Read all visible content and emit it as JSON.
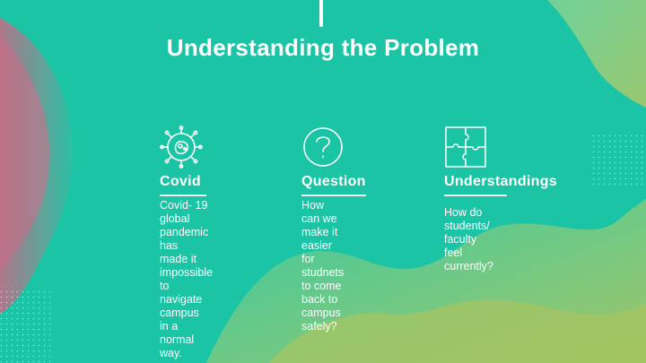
{
  "slide": {
    "title": "Understanding the Problem"
  },
  "columns": [
    {
      "icon": "virus-icon",
      "heading": "Covid",
      "body": "Covid- 19 global\npandemic has\nmade it\nimpossible to\nnavigate campus\nin a normal way."
    },
    {
      "icon": "question-mark-icon",
      "heading": "Question",
      "body": "How can we\nmake it easier for\nstudnets to  come\nback to campus\nsafely?"
    },
    {
      "icon": "puzzle-icon",
      "heading": "Understandings",
      "body": "How do students/\nfaculty feel\ncurrently?"
    }
  ],
  "colors": {
    "background": "#1bc4a4",
    "text": "#ffffff",
    "blob_pink": "#c86a86",
    "blob_green": "#6fcf8a",
    "blob_yellow": "#a8c463"
  }
}
